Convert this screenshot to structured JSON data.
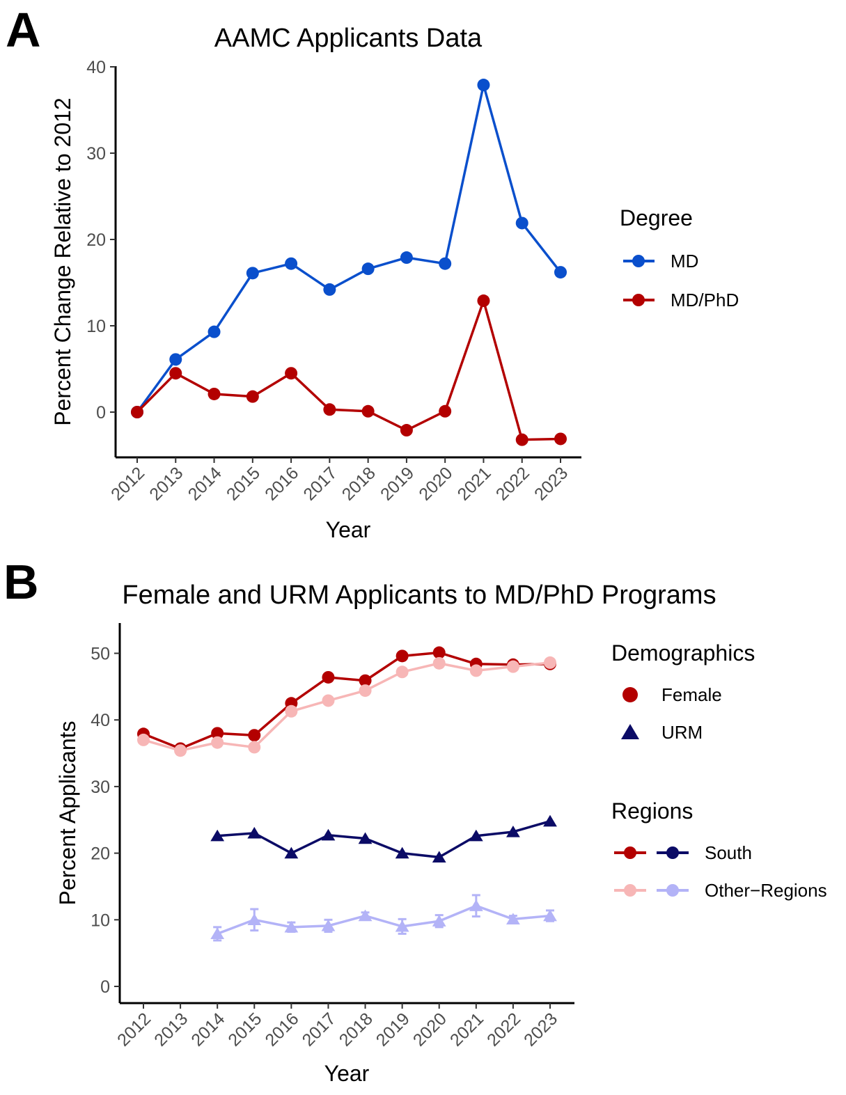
{
  "chart_data": [
    {
      "panel": "A",
      "type": "line",
      "title": "AAMC Applicants Data",
      "xlabel": "Year",
      "ylabel": "Percent Change Relative to 2012",
      "categories": [
        "2012",
        "2013",
        "2014",
        "2015",
        "2016",
        "2017",
        "2018",
        "2019",
        "2020",
        "2021",
        "2022",
        "2023"
      ],
      "ylim": [
        -5,
        40
      ],
      "yticks": [
        "0",
        "10",
        "20",
        "30",
        "40"
      ],
      "grid": false,
      "legend": {
        "title": "Degree",
        "placement": "right"
      },
      "series": [
        {
          "name": "MD",
          "color": "#0a4fcc",
          "values": [
            0,
            6.1,
            9.3,
            16.1,
            17.2,
            14.2,
            16.6,
            17.9,
            17.2,
            37.9,
            21.9,
            16.2
          ]
        },
        {
          "name": "MD/PhD",
          "color": "#b30000",
          "values": [
            0,
            4.5,
            2.1,
            1.8,
            4.5,
            0.3,
            0.1,
            -2.1,
            0.1,
            12.9,
            -3.2,
            -3.1
          ]
        }
      ]
    },
    {
      "panel": "B",
      "type": "line",
      "title": "Female and URM Applicants to MD/PhD Programs",
      "xlabel": "Year",
      "ylabel": "Percent Applicants",
      "categories": [
        "2012",
        "2013",
        "2014",
        "2015",
        "2016",
        "2017",
        "2018",
        "2019",
        "2020",
        "2021",
        "2022",
        "2023"
      ],
      "ylim": [
        -2,
        55
      ],
      "yticks": [
        "0",
        "10",
        "20",
        "30",
        "40",
        "50"
      ],
      "grid": false,
      "legend": [
        {
          "title": "Demographics",
          "items": [
            {
              "label": "Female",
              "shape": "circle"
            },
            {
              "label": "URM",
              "shape": "triangle"
            }
          ]
        },
        {
          "title": "Regions",
          "items": [
            {
              "label": "South"
            },
            {
              "label": "Other−Regions"
            }
          ]
        }
      ],
      "series": [
        {
          "name": "Female - South",
          "color": "#b30000",
          "marker": "circle",
          "values": [
            37.9,
            35.7,
            38.0,
            37.7,
            42.5,
            46.4,
            45.9,
            49.6,
            50.1,
            48.4,
            48.3,
            48.4
          ]
        },
        {
          "name": "Female - Other-Regions",
          "color": "#f7b6b6",
          "marker": "circle",
          "values": [
            37.0,
            35.4,
            36.6,
            35.9,
            41.3,
            42.9,
            44.4,
            47.2,
            48.5,
            47.4,
            48.0,
            48.6
          ],
          "error": [
            0.5,
            0.5,
            0.5,
            0.5,
            0.6,
            0.5,
            0.5,
            0.5,
            0.5,
            0.5,
            0.5,
            0.5
          ]
        },
        {
          "name": "URM - South",
          "color": "#0b0b66",
          "marker": "triangle",
          "values": [
            null,
            null,
            22.6,
            23.0,
            20.0,
            22.7,
            22.2,
            20.0,
            19.4,
            22.6,
            23.2,
            24.8
          ]
        },
        {
          "name": "URM - Other-Regions",
          "color": "#b3b3f7",
          "marker": "triangle",
          "values": [
            null,
            null,
            7.9,
            10.0,
            8.9,
            9.1,
            10.6,
            9.0,
            9.8,
            12.1,
            10.1,
            10.6
          ],
          "error": [
            null,
            null,
            1.0,
            1.6,
            0.7,
            0.9,
            0.5,
            1.1,
            0.9,
            1.6,
            0.5,
            0.8
          ]
        }
      ]
    }
  ],
  "legend_colors": {
    "south": [
      "#b30000",
      "#0b0b66"
    ],
    "other": [
      "#f7b6b6",
      "#b3b3f7"
    ]
  }
}
